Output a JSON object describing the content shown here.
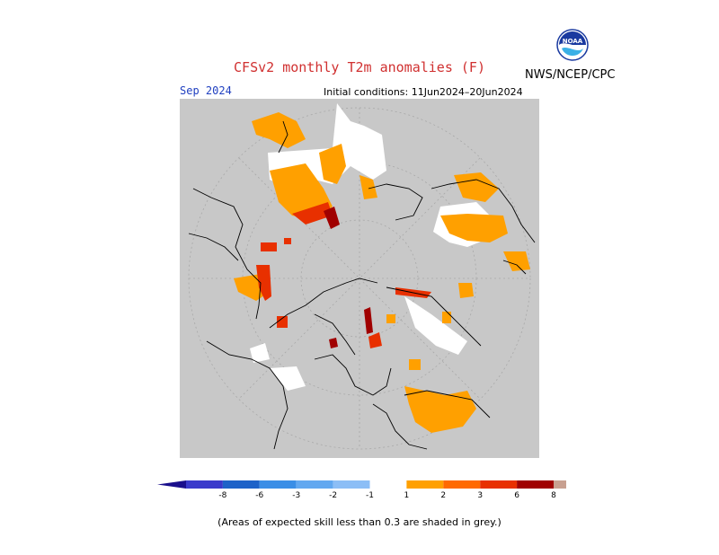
{
  "header": {
    "title": "CFSv2 monthly T2m anomalies (F)",
    "agency": "NWS/NCEP/CPC",
    "logo_text": "NOAA",
    "target_month": "Sep 2024",
    "initial_conditions": "Initial conditions: 11Jun2024–20Jun2024"
  },
  "colors": {
    "title": "#d03030",
    "month": "#2040c0",
    "skill_mask": "#c8c8c8",
    "cold": [
      "#1a0f8c",
      "#3a3acb",
      "#1e62c8",
      "#3a8ee6",
      "#62a8f0",
      "#8cbef6"
    ],
    "warm": [
      "#ffa000",
      "#ff6a00",
      "#e83000",
      "#a00000",
      "#c8a090",
      "#7a5040"
    ],
    "neutral": "#ffffff"
  },
  "legend": {
    "tick_labels": [
      "-8",
      "-6",
      "-3",
      "-2",
      "-1",
      "1",
      "2",
      "3",
      "6",
      "8"
    ],
    "units": "F"
  },
  "note": "(Areas of expected skill less than 0.3 are shaded in grey.)"
}
